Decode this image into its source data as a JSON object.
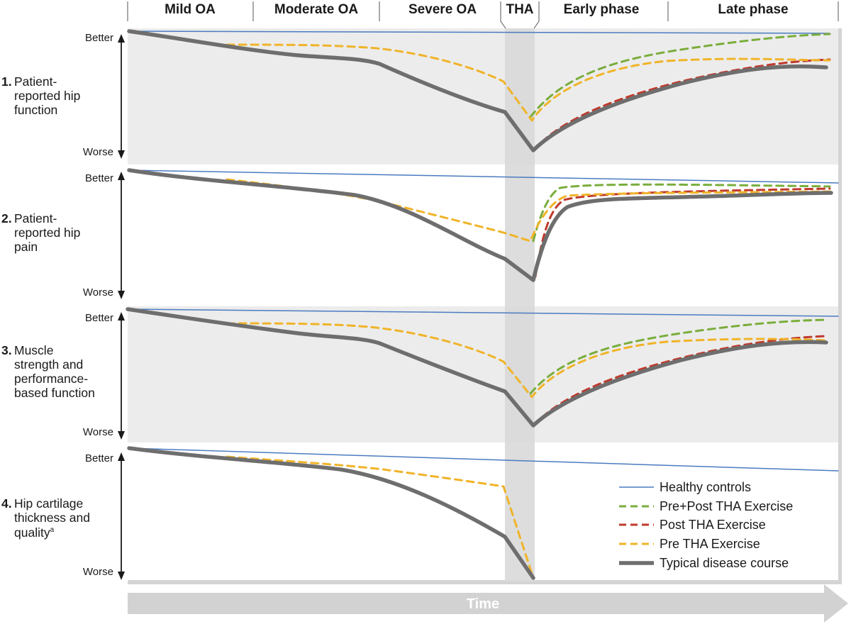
{
  "phases": [
    "Mild OA",
    "Moderate OA",
    "Severe OA",
    "THA",
    "Early phase",
    "Late phase"
  ],
  "axis": {
    "better": "Better",
    "worse": "Worse",
    "time": "Time"
  },
  "panels": [
    {
      "num": "1.",
      "label_lines": [
        "Patient-",
        "reported hip",
        "function"
      ],
      "sup": ""
    },
    {
      "num": "2.",
      "label_lines": [
        "Patient-",
        "reported hip",
        "pain"
      ],
      "sup": ""
    },
    {
      "num": "3.",
      "label_lines": [
        "Muscle",
        "strength and",
        "performance-",
        "based function"
      ],
      "sup": ""
    },
    {
      "num": "4.",
      "label_lines": [
        "Hip cartilage",
        "thickness and",
        "quality"
      ],
      "sup": "a"
    }
  ],
  "legend": [
    {
      "key": "healthy",
      "label": "Healthy controls",
      "color": "#4a7cc0",
      "style": "solid-thin"
    },
    {
      "key": "prepost",
      "label": "Pre+Post THA Exercise",
      "color": "#7aad3c",
      "style": "dashed"
    },
    {
      "key": "post",
      "label": "Post THA Exercise",
      "color": "#c0392b",
      "style": "dashed"
    },
    {
      "key": "pre",
      "label": "Pre THA Exercise",
      "color": "#f0b429",
      "style": "dashed"
    },
    {
      "key": "typical",
      "label": "Typical disease course",
      "color": "#6e6e6e",
      "style": "solid-thick"
    }
  ],
  "colors": {
    "panel_shade": "#ececec",
    "tha_band": "#d9d9d9",
    "time_arrow": "#d2d2d2"
  }
}
